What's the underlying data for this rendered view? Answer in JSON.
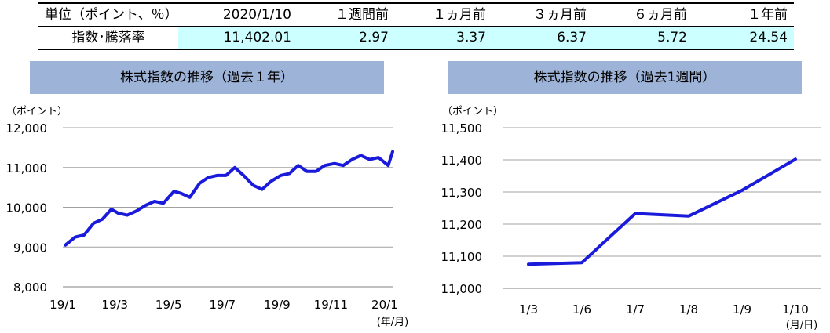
{
  "summary": {
    "headers": [
      "単位（ポイント、％）",
      "2020/1/10",
      "１週間前",
      "１ヵ月前",
      "３ヵ月前",
      "６ヵ月前",
      "１年前"
    ],
    "row_label": "指数･騰落率",
    "values": [
      "11,402.01",
      "2.97",
      "3.37",
      "6.37",
      "5.72",
      "24.54"
    ]
  },
  "colors": {
    "title_bg": "#9db3d7",
    "value_bg": "#ccffff",
    "line": "#1a1adb",
    "grid": "#a0a0a0"
  },
  "chart_data": [
    {
      "type": "line",
      "title": "株式指数の推移（過去１年）",
      "ylabel": "（ポイント）",
      "xlabel": "(年/月)",
      "ylim": [
        8000,
        12000
      ],
      "yticks": [
        8000,
        9000,
        10000,
        11000,
        12000
      ],
      "ytick_labels": [
        "8,000",
        "9,000",
        "10,000",
        "11,000",
        "12,000"
      ],
      "x_tick_labels": [
        "19/1",
        "19/3",
        "19/5",
        "19/7",
        "19/9",
        "19/11",
        "20/1"
      ],
      "grid": true,
      "series": [
        {
          "x": [
            "2019-01-04",
            "2019-01-15",
            "2019-01-25",
            "2019-02-05",
            "2019-02-15",
            "2019-02-25",
            "2019-03-05",
            "2019-03-15",
            "2019-03-25",
            "2019-04-05",
            "2019-04-15",
            "2019-04-25",
            "2019-05-07",
            "2019-05-15",
            "2019-05-25",
            "2019-06-05",
            "2019-06-15",
            "2019-06-25",
            "2019-07-05",
            "2019-07-15",
            "2019-07-25",
            "2019-08-05",
            "2019-08-15",
            "2019-08-25",
            "2019-09-05",
            "2019-09-15",
            "2019-09-25",
            "2019-10-05",
            "2019-10-15",
            "2019-10-25",
            "2019-11-05",
            "2019-11-15",
            "2019-11-25",
            "2019-12-05",
            "2019-12-15",
            "2019-12-25",
            "2020-01-05",
            "2020-01-10"
          ],
          "values": [
            9050,
            9250,
            9300,
            9600,
            9700,
            9950,
            9850,
            9800,
            9900,
            10050,
            10150,
            10100,
            10400,
            10350,
            10250,
            10600,
            10750,
            10800,
            10800,
            11000,
            10800,
            10550,
            10450,
            10650,
            10800,
            10850,
            11050,
            10900,
            10900,
            11050,
            11100,
            11050,
            11200,
            11300,
            11200,
            11250,
            11050,
            11400
          ]
        }
      ]
    },
    {
      "type": "line",
      "title": "株式指数の推移（過去1週間）",
      "ylabel": "（ポイント）",
      "xlabel": "(月/日)",
      "ylim": [
        11000,
        11500
      ],
      "yticks": [
        11000,
        11100,
        11200,
        11300,
        11400,
        11500
      ],
      "ytick_labels": [
        "11,000",
        "11,100",
        "11,200",
        "11,300",
        "11,400",
        "11,500"
      ],
      "categories": [
        "1/3",
        "1/6",
        "1/7",
        "1/8",
        "1/9",
        "1/10"
      ],
      "grid": true,
      "series": [
        {
          "values": [
            11075,
            11080,
            11233,
            11225,
            11305,
            11402
          ]
        }
      ]
    }
  ]
}
